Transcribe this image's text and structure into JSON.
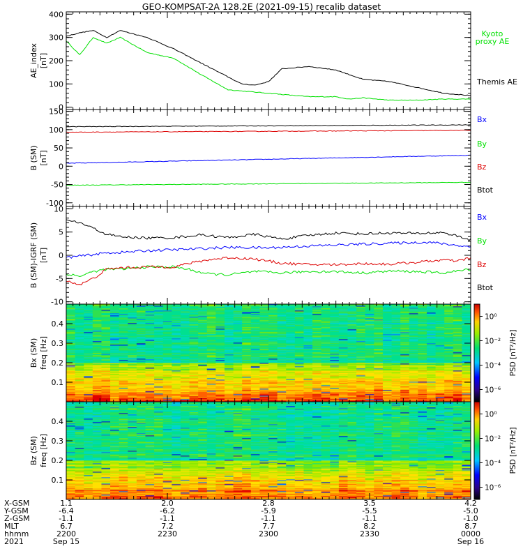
{
  "title": "GEO-KOMPSAT-2A 128.2E (2021-09-15) recalib dataset",
  "colors": {
    "black": "#000000",
    "green": "#00e000",
    "blue": "#0000ff",
    "red": "#dd0000"
  },
  "time": {
    "start": "2021-09-15 22:00",
    "end": "2021-09-16 00:00",
    "tick_labels": [
      "2200",
      "2230",
      "2300",
      "2330",
      "0000"
    ]
  },
  "chart_data": [
    {
      "type": "line",
      "ylabel": "AE_index",
      "yunit": "[nT]",
      "ylim": [
        -10,
        410
      ],
      "yticks": [
        0,
        100,
        200,
        300,
        400
      ],
      "series": [
        {
          "name": "Kyoto proxy AE",
          "legend": [
            "Kyoto",
            "proxy AE"
          ],
          "color": "green",
          "t": [
            0,
            4,
            8,
            12,
            16,
            24,
            32,
            40,
            48,
            56,
            64,
            72,
            80,
            84,
            88,
            96,
            104,
            112,
            120
          ],
          "values": [
            285,
            225,
            300,
            275,
            300,
            235,
            210,
            140,
            75,
            65,
            55,
            45,
            45,
            35,
            40,
            30,
            30,
            35,
            35
          ]
        },
        {
          "name": "Themis AE",
          "legend": [
            "Themis AE"
          ],
          "color": "black",
          "t": [
            0,
            4,
            8,
            12,
            16,
            24,
            32,
            40,
            48,
            52,
            56,
            60,
            64,
            72,
            80,
            88,
            96,
            104,
            112,
            120
          ],
          "values": [
            305,
            320,
            330,
            300,
            330,
            300,
            250,
            190,
            130,
            100,
            95,
            110,
            165,
            175,
            160,
            120,
            110,
            85,
            60,
            50
          ]
        }
      ]
    },
    {
      "type": "line",
      "ylabel": "B (SM)",
      "yunit": "[nT]",
      "ylim": [
        -110,
        155
      ],
      "yticks": [
        -100,
        -50,
        0,
        50,
        100,
        150
      ],
      "series": [
        {
          "name": "Bx",
          "color": "blue",
          "t": [
            0,
            120
          ],
          "values": [
            8,
            30
          ]
        },
        {
          "name": "By",
          "color": "green",
          "t": [
            0,
            120
          ],
          "values": [
            -52,
            -44
          ]
        },
        {
          "name": "Bz",
          "color": "red",
          "t": [
            0,
            120
          ],
          "values": [
            93,
            98
          ]
        },
        {
          "name": "Btot",
          "color": "black",
          "t": [
            0,
            120
          ],
          "values": [
            108,
            113
          ]
        }
      ]
    },
    {
      "type": "line",
      "ylabel": "B (SM)-IGRF (SM)",
      "yunit": "[nT]",
      "ylim": [
        -10.5,
        10.5
      ],
      "yticks": [
        -10,
        -5,
        0,
        5,
        10
      ],
      "series": [
        {
          "name": "Bx",
          "color": "blue",
          "t": [
            0,
            6,
            12,
            18,
            24,
            36,
            48,
            60,
            72,
            84,
            96,
            108,
            120
          ],
          "values": [
            -0.5,
            0,
            0.5,
            0.7,
            1,
            1.3,
            1.7,
            1.6,
            2,
            2.3,
            2.6,
            2.8,
            1.8
          ]
        },
        {
          "name": "By",
          "color": "green",
          "t": [
            0,
            4,
            8,
            12,
            16,
            24,
            32,
            36,
            42,
            48,
            56,
            64,
            72,
            80,
            88,
            96,
            104,
            112,
            120
          ],
          "values": [
            -4,
            -4.5,
            -3.5,
            -3,
            -3,
            -2.5,
            -2.5,
            -3,
            -4,
            -4.2,
            -3.5,
            -3.8,
            -3.5,
            -3.5,
            -3.8,
            -3.4,
            -3.5,
            -3.8,
            -3
          ]
        },
        {
          "name": "Bz",
          "color": "red",
          "t": [
            0,
            4,
            8,
            12,
            16,
            24,
            32,
            36,
            42,
            48,
            56,
            64,
            72,
            80,
            88,
            96,
            104,
            112,
            116,
            120
          ],
          "values": [
            -5.5,
            -6.3,
            -5,
            -3,
            -2.7,
            -2.5,
            -2.5,
            -1.8,
            -1,
            -0.5,
            -0.8,
            -1.7,
            -2,
            -2,
            -1.8,
            -1.9,
            -1.5,
            -1,
            -1.3,
            -0.5
          ]
        },
        {
          "name": "Btot",
          "color": "black",
          "t": [
            0,
            4,
            8,
            12,
            16,
            24,
            32,
            40,
            48,
            56,
            64,
            72,
            80,
            88,
            96,
            104,
            112,
            120
          ],
          "values": [
            7.5,
            7,
            5.8,
            4.5,
            4,
            3.7,
            3.8,
            4.4,
            3.8,
            4.5,
            3.5,
            4.3,
            4.8,
            4.6,
            4.8,
            4.7,
            4.9,
            3.3
          ]
        }
      ]
    },
    {
      "type": "heatmap",
      "ylabel": "Bx (SM)",
      "yunit": "freq [Hz]",
      "ylim": [
        0,
        0.5
      ],
      "yticks": [
        0.1,
        0.2,
        0.3,
        0.4
      ],
      "colorbar": {
        "label": "PSD [nT²/Hz]",
        "ticks": [
          "10⁰",
          "10⁻²",
          "10⁻⁴",
          "10⁻⁶"
        ],
        "decades": [
          0,
          -2,
          -4,
          -6
        ],
        "range": [
          -7,
          1
        ]
      },
      "level_profile": "bands"
    },
    {
      "type": "heatmap",
      "ylabel": "Bz (SM)",
      "yunit": "freq [Hz]",
      "ylim": [
        0,
        0.5
      ],
      "yticks": [
        0.1,
        0.2,
        0.3,
        0.4
      ],
      "colorbar": {
        "label": "PSD [nT²/Hz]",
        "ticks": [
          "10⁰",
          "10⁻²",
          "10⁻⁴",
          "10⁻⁶"
        ],
        "decades": [
          0,
          -2,
          -4,
          -6
        ],
        "range": [
          -7,
          1
        ]
      },
      "level_profile": "bands"
    }
  ],
  "ephemeris": {
    "labels": [
      "X-GSM",
      "Y-GSM",
      "Z-GSM",
      "MLT",
      "hhmm",
      "2021"
    ],
    "columns": [
      [
        "1.1",
        "-6.4",
        "-1.1",
        "6.7",
        "2200",
        "Sep 15"
      ],
      [
        "2.0",
        "-6.2",
        "-1.1",
        "7.2",
        "2230",
        ""
      ],
      [
        "2.8",
        "-5.9",
        "-1.1",
        "7.7",
        "2300",
        ""
      ],
      [
        "3.5",
        "-5.5",
        "-1.1",
        "8.2",
        "2330",
        ""
      ],
      [
        "4.2",
        "-5.0",
        "-1.0",
        "8.7",
        "0000",
        "Sep 16"
      ]
    ]
  }
}
